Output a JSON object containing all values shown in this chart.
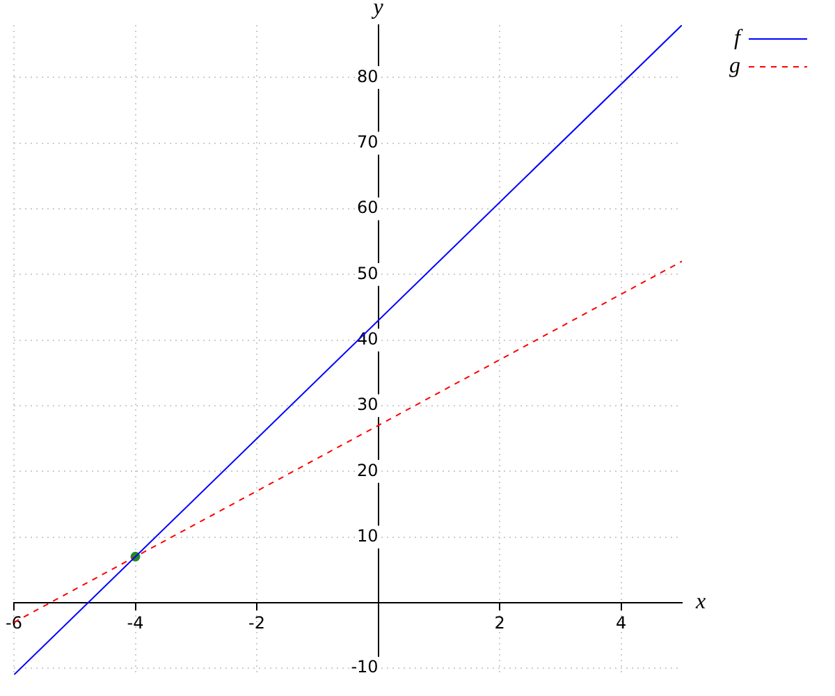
{
  "chart_data": {
    "type": "line",
    "xlabel": "x",
    "ylabel": "y",
    "xlim": [
      -6,
      5
    ],
    "ylim": [
      -11,
      88
    ],
    "xticks": [
      -6,
      -4,
      -2,
      2,
      4
    ],
    "yticks": [
      -10,
      10,
      20,
      30,
      40,
      50,
      60,
      70,
      80
    ],
    "grid": true,
    "legend": "top right",
    "marker": "none",
    "series": [
      {
        "name": "f",
        "color": "#0000ff",
        "x": [
          -6,
          5
        ],
        "values": [
          -11,
          88
        ],
        "line_style": "solid"
      },
      {
        "name": "g",
        "color": "#ff0000",
        "x": [
          -6,
          5
        ],
        "values": [
          -3,
          52
        ],
        "line_style": "dashed"
      },
      {
        "type": "scatter",
        "color": "#228b22",
        "x": [
          -4
        ],
        "values": [
          7
        ],
        "marker": "circle"
      }
    ]
  }
}
